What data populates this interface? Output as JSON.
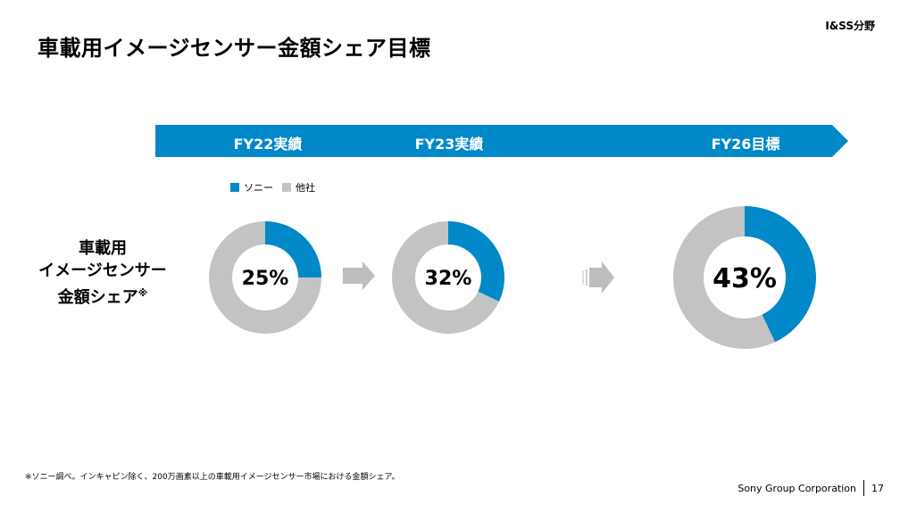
{
  "header": {
    "title": "車載用イメージセンサー金額シェア目標",
    "division": "I&SS分野"
  },
  "colors": {
    "accent": "#0088c8",
    "other": "#c3c3c3",
    "arrow": "#bdbdbd"
  },
  "timeline": {
    "labels": [
      "FY22実績",
      "FY23実績",
      "FY26目標"
    ]
  },
  "row_label": {
    "line1": "車載用",
    "line2": "イメージセンサー",
    "line3": "金額シェア",
    "mark": "※"
  },
  "chart_data": {
    "type": "pie",
    "legend": [
      "ソニー",
      "他社"
    ],
    "legend_position": "top-left",
    "charts": [
      {
        "period": "FY22実績",
        "sony": 25,
        "others": 75,
        "label": "25%"
      },
      {
        "period": "FY23実績",
        "sony": 32,
        "others": 68,
        "label": "32%"
      },
      {
        "period": "FY26目標",
        "sony": 43,
        "others": 57,
        "label": "43%"
      }
    ]
  },
  "footnote": "※ソニー調べ。インキャピン除く、200万画素以上の車載用イメージセンサー市場における金額シェア。",
  "footer": {
    "company": "Sony Group Corporation",
    "page": "17"
  }
}
